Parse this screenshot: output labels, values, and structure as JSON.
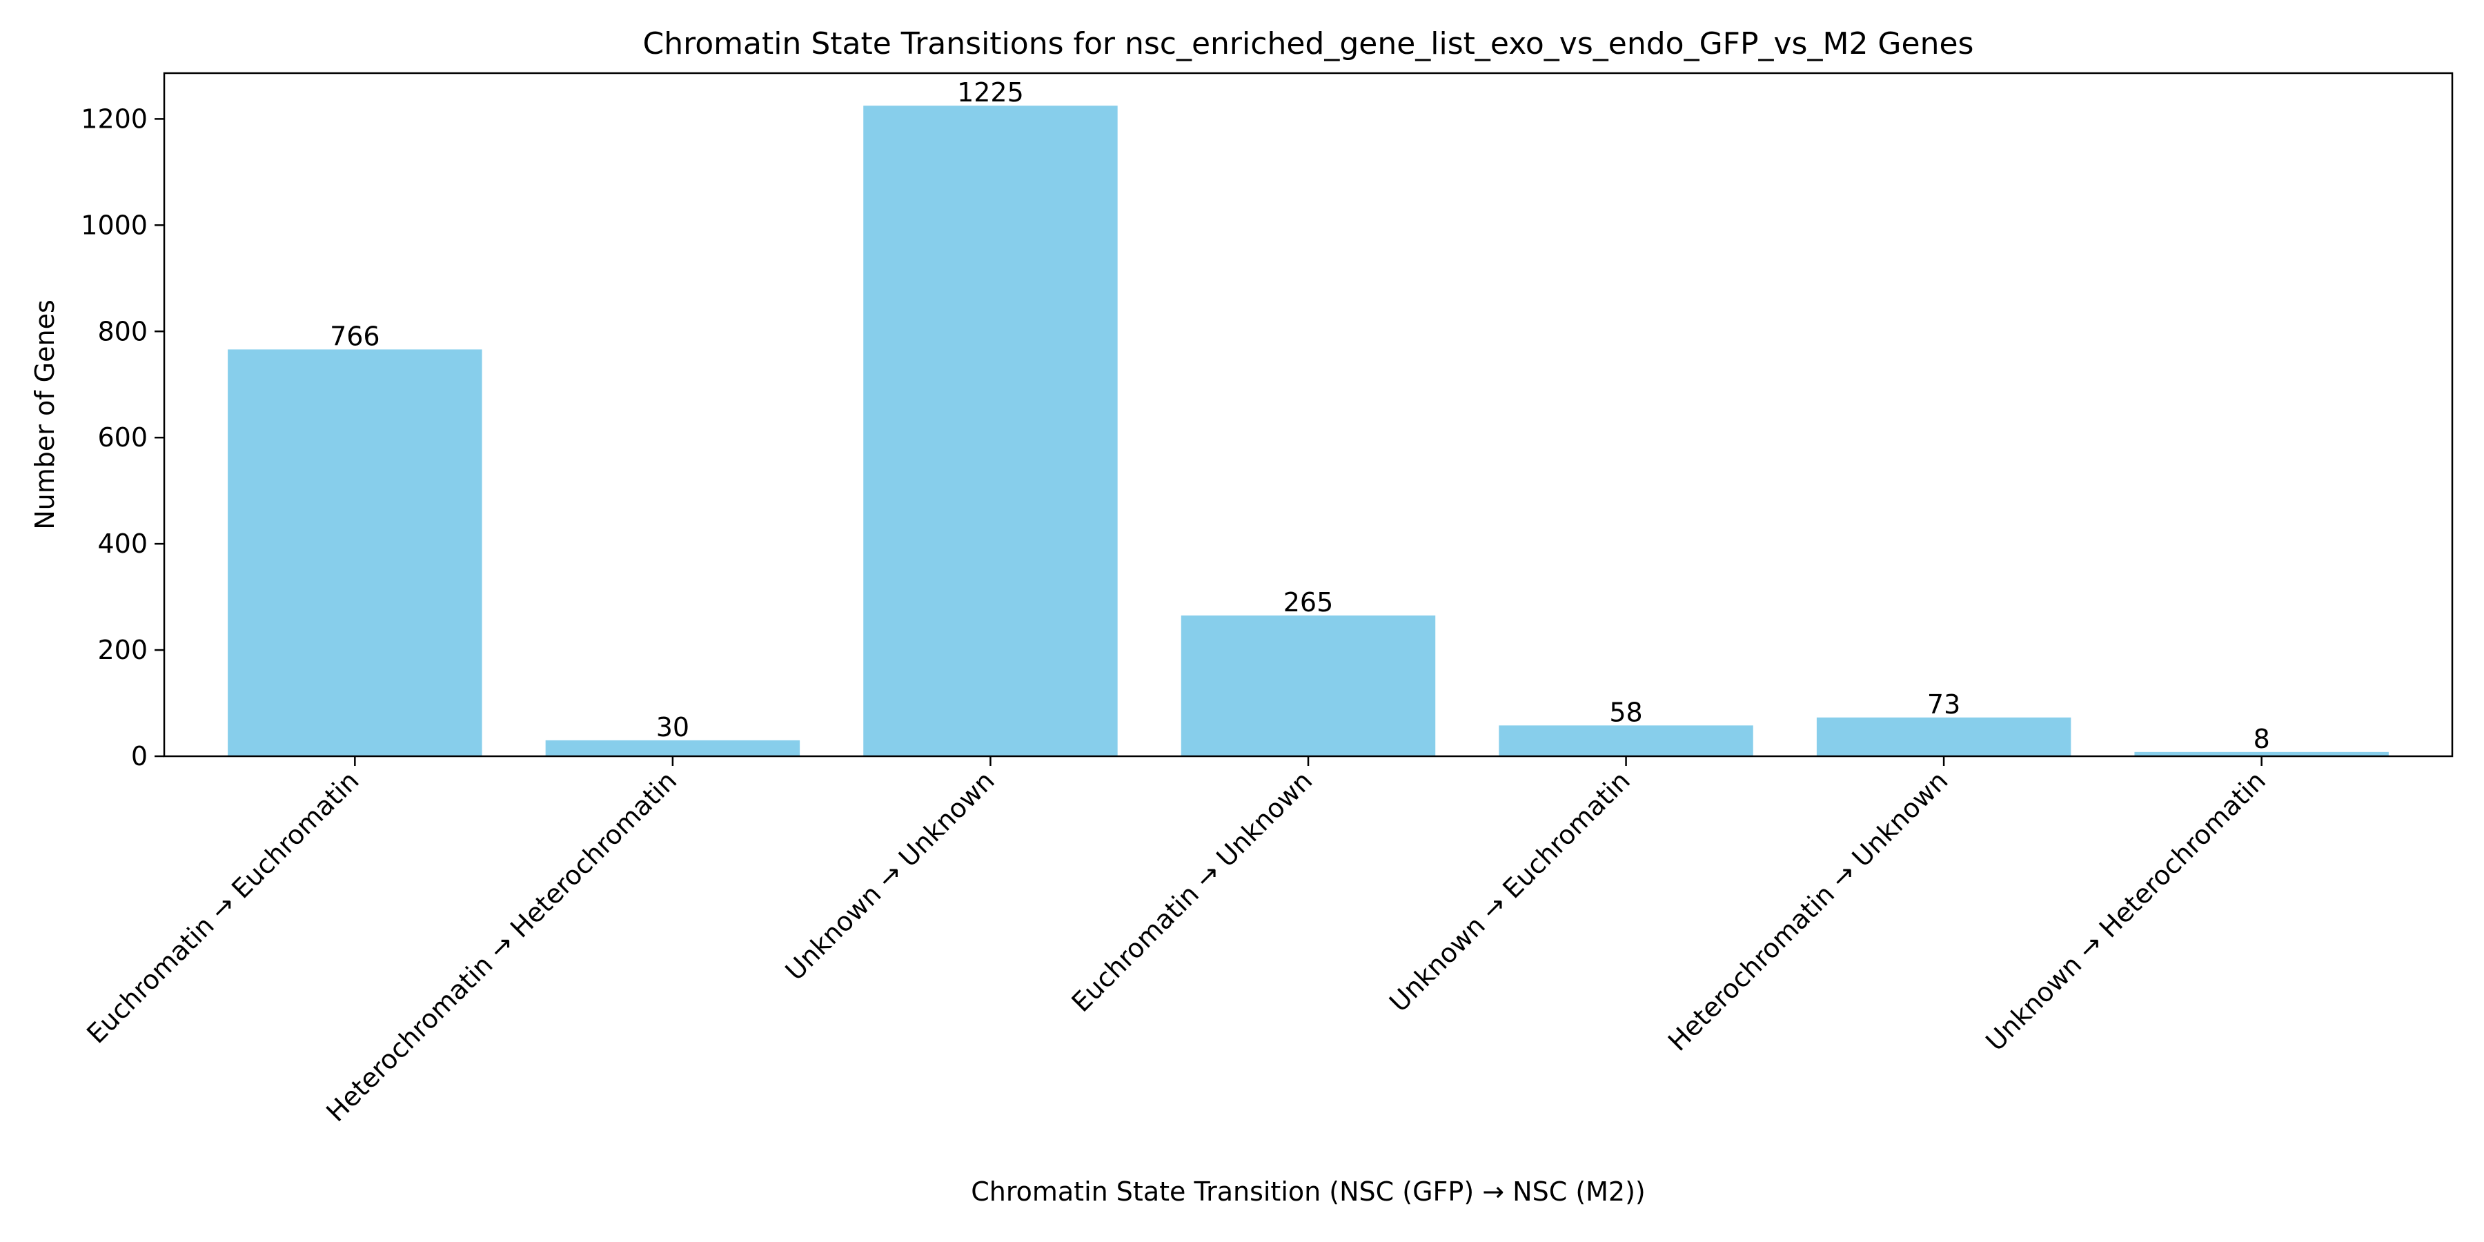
{
  "chart_data": {
    "type": "bar",
    "title": "Chromatin State Transitions for nsc_enriched_gene_list_exo_vs_endo_GFP_vs_M2 Genes",
    "xlabel": "Chromatin State Transition (NSC (GFP) → NSC (M2))",
    "ylabel": "Number of Genes",
    "categories": [
      "Euchromatin → Euchromatin",
      "Heterochromatin → Heterochromatin",
      "Unknown → Unknown",
      "Euchromatin → Unknown",
      "Unknown → Euchromatin",
      "Heterochromatin → Unknown",
      "Unknown → Heterochromatin"
    ],
    "values": [
      766,
      30,
      1225,
      265,
      58,
      73,
      8
    ],
    "ylim": [
      0,
      1286.25
    ],
    "yticks": [
      0,
      200,
      400,
      600,
      800,
      1000,
      1200
    ],
    "bar_color": "#87CEEB",
    "grid": false,
    "legend": false
  }
}
